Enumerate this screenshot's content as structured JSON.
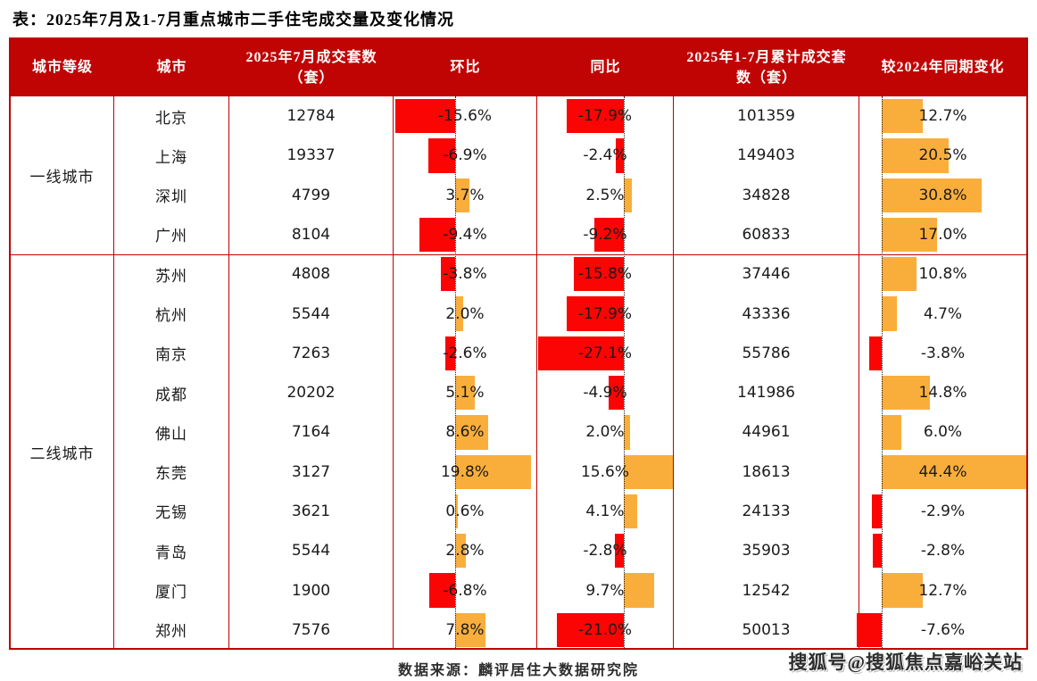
{
  "title": "表：2025年7月及1-7月重点城市二手住宅成交量及变化情况",
  "header": {
    "col_tier": "城市等级",
    "col_city": "城市",
    "col_jul": "2025年7月成交套数（套）",
    "col_mom": "环比",
    "col_yoy": "同比",
    "col_cum": "2025年1-7月累计成交套数（套）",
    "col_chg": "较2024年同期变化"
  },
  "tiers": [
    {
      "label": "一线城市",
      "row_count": 4
    },
    {
      "label": "二线城市",
      "row_count": 10
    }
  ],
  "rows": [
    {
      "tier": "一线城市",
      "city": "北京",
      "jul": "12784",
      "mom": -15.6,
      "yoy": -17.9,
      "cum": "101359",
      "chg": 12.7
    },
    {
      "tier": "一线城市",
      "city": "上海",
      "jul": "19337",
      "mom": -6.9,
      "yoy": -2.4,
      "cum": "149403",
      "chg": 20.5
    },
    {
      "tier": "一线城市",
      "city": "深圳",
      "jul": "4799",
      "mom": 3.7,
      "yoy": 2.5,
      "cum": "34828",
      "chg": 30.8
    },
    {
      "tier": "一线城市",
      "city": "广州",
      "jul": "8104",
      "mom": -9.4,
      "yoy": -9.2,
      "cum": "60833",
      "chg": 17.0
    },
    {
      "tier": "二线城市",
      "city": "苏州",
      "jul": "4808",
      "mom": -3.8,
      "yoy": -15.8,
      "cum": "37446",
      "chg": 10.8
    },
    {
      "tier": "二线城市",
      "city": "杭州",
      "jul": "5544",
      "mom": 2.0,
      "yoy": -17.9,
      "cum": "43336",
      "chg": 4.7
    },
    {
      "tier": "二线城市",
      "city": "南京",
      "jul": "7263",
      "mom": -2.6,
      "yoy": -27.1,
      "cum": "55786",
      "chg": -3.8
    },
    {
      "tier": "二线城市",
      "city": "成都",
      "jul": "20202",
      "mom": 5.1,
      "yoy": -4.9,
      "cum": "141986",
      "chg": 14.8
    },
    {
      "tier": "二线城市",
      "city": "佛山",
      "jul": "7164",
      "mom": 8.6,
      "yoy": 2.0,
      "cum": "44961",
      "chg": 6.0
    },
    {
      "tier": "二线城市",
      "city": "东莞",
      "jul": "3127",
      "mom": 19.8,
      "yoy": 15.6,
      "cum": "18613",
      "chg": 44.4
    },
    {
      "tier": "二线城市",
      "city": "无锡",
      "jul": "3621",
      "mom": 0.6,
      "yoy": 4.1,
      "cum": "24133",
      "chg": -2.9
    },
    {
      "tier": "二线城市",
      "city": "青岛",
      "jul": "5544",
      "mom": 2.8,
      "yoy": -2.8,
      "cum": "35903",
      "chg": -2.8
    },
    {
      "tier": "二线城市",
      "city": "厦门",
      "jul": "1900",
      "mom": -6.8,
      "yoy": 9.7,
      "cum": "12542",
      "chg": 12.7
    },
    {
      "tier": "二线城市",
      "city": "郑州",
      "jul": "7576",
      "mom": 7.8,
      "yoy": -21.0,
      "cum": "50013",
      "chg": -7.6
    }
  ],
  "footer": {
    "source": "数据来源：麟评居住大数据研究院",
    "watermark": "搜狐号@搜狐焦点嘉峪关站"
  },
  "colors": {
    "positive": "#F9AE3C",
    "negative": "#FB0404",
    "header_bg": "#C00404",
    "border": "#C00000",
    "zero_line": "#222222"
  },
  "chart_data": {
    "type": "table",
    "title": "2025年7月及1-7月重点城市二手住宅成交量及变化情况",
    "columns": [
      "城市等级",
      "城市",
      "2025年7月成交套数（套）",
      "环比",
      "同比",
      "2025年1-7月累计成交套数（套）",
      "较2024年同期变化"
    ],
    "bar_columns": [
      "环比",
      "同比",
      "较2024年同期变化"
    ],
    "bar_legend": {
      "positive_color": "#F9AE3C",
      "negative_color": "#FB0404",
      "layout": "diverging horizontal bars from dotted zero line"
    },
    "rows": [
      [
        "一线城市",
        "北京",
        12784,
        "-15.6%",
        "-17.9%",
        101359,
        "12.7%"
      ],
      [
        "一线城市",
        "上海",
        19337,
        "-6.9%",
        "-2.4%",
        149403,
        "20.5%"
      ],
      [
        "一线城市",
        "深圳",
        4799,
        "3.7%",
        "2.5%",
        34828,
        "30.8%"
      ],
      [
        "一线城市",
        "广州",
        8104,
        "-9.4%",
        "-9.2%",
        60833,
        "17.0%"
      ],
      [
        "二线城市",
        "苏州",
        4808,
        "-3.8%",
        "-15.8%",
        37446,
        "10.8%"
      ],
      [
        "二线城市",
        "杭州",
        5544,
        "2.0%",
        "-17.9%",
        43336,
        "4.7%"
      ],
      [
        "二线城市",
        "南京",
        7263,
        "-2.6%",
        "-27.1%",
        55786,
        "-3.8%"
      ],
      [
        "二线城市",
        "成都",
        20202,
        "5.1%",
        "-4.9%",
        141986,
        "14.8%"
      ],
      [
        "二线城市",
        "佛山",
        7164,
        "8.6%",
        "2.0%",
        44961,
        "6.0%"
      ],
      [
        "二线城市",
        "东莞",
        3127,
        "19.8%",
        "15.6%",
        18613,
        "44.4%"
      ],
      [
        "二线城市",
        "无锡",
        3621,
        "0.6%",
        "4.1%",
        24133,
        "-2.9%"
      ],
      [
        "二线城市",
        "青岛",
        5544,
        "2.8%",
        "-2.8%",
        35903,
        "-2.8%"
      ],
      [
        "二线城市",
        "厦门",
        1900,
        "-6.8%",
        "9.7%",
        12542,
        "12.7%"
      ],
      [
        "二线城市",
        "郑州",
        7576,
        "7.8%",
        "-21.0%",
        50013,
        "-7.6%"
      ]
    ]
  }
}
